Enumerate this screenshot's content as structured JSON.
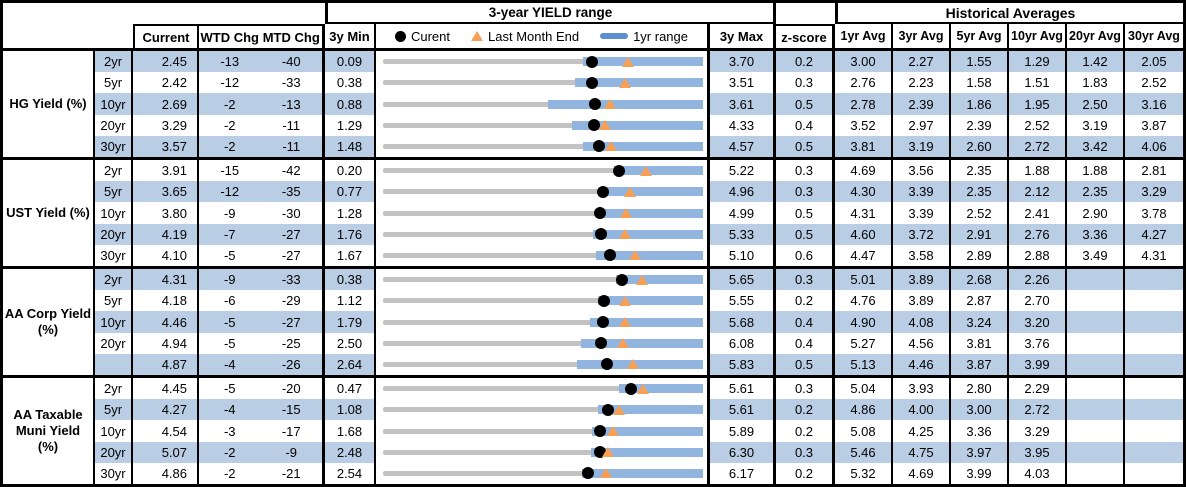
{
  "colors": {
    "stripe": "#b9cde5",
    "bar": "#92b5e0",
    "track": "#c2c2c2",
    "orange": "#f7a055",
    "legendline": "#5b8fd0",
    "border": "#000000"
  },
  "header": {
    "range_title": "3-year YIELD range",
    "historical_title": "Historical Averages",
    "col_current": "Current",
    "col_wtd": "WTD Chg",
    "col_mtd": "MTD Chg",
    "col_3y_min": "3y Min",
    "col_3y_max": "3y Max",
    "col_zscore": "z-score",
    "avg_cols": [
      "1yr Avg",
      "3yr Avg",
      "5yr Avg",
      "10yr Avg",
      "20yr Avg",
      "30yr Avg"
    ],
    "legend": {
      "current": "Curent",
      "last_month": "Last Month End",
      "range": "1yr range"
    }
  },
  "groups": [
    {
      "label": "HG Yield (%)",
      "rows": [
        {
          "tenor": "2yr",
          "current": "2.45",
          "wtd": "-13",
          "mtd": "-40",
          "min": "0.09",
          "max": "3.70",
          "z": "0.2",
          "avgs": [
            "3.00",
            "2.27",
            "1.55",
            "1.29",
            "1.42",
            "2.05"
          ]
        },
        {
          "tenor": "5yr",
          "current": "2.42",
          "wtd": "-12",
          "mtd": "-33",
          "min": "0.38",
          "max": "3.51",
          "z": "0.3",
          "avgs": [
            "2.76",
            "2.23",
            "1.58",
            "1.51",
            "1.83",
            "2.52"
          ]
        },
        {
          "tenor": "10yr",
          "current": "2.69",
          "wtd": "-2",
          "mtd": "-13",
          "min": "0.88",
          "max": "3.61",
          "z": "0.5",
          "avgs": [
            "2.78",
            "2.39",
            "1.86",
            "1.95",
            "2.50",
            "3.16"
          ]
        },
        {
          "tenor": "20yr",
          "current": "3.29",
          "wtd": "-2",
          "mtd": "-11",
          "min": "1.29",
          "max": "4.33",
          "z": "0.4",
          "avgs": [
            "3.52",
            "2.97",
            "2.39",
            "2.52",
            "3.19",
            "3.87"
          ]
        },
        {
          "tenor": "30yr",
          "current": "3.57",
          "wtd": "-2",
          "mtd": "-11",
          "min": "1.48",
          "max": "4.57",
          "z": "0.5",
          "avgs": [
            "3.81",
            "3.19",
            "2.60",
            "2.72",
            "3.42",
            "4.06"
          ]
        }
      ]
    },
    {
      "label": "UST Yield (%)",
      "rows": [
        {
          "tenor": "2yr",
          "current": "3.91",
          "wtd": "-15",
          "mtd": "-42",
          "min": "0.20",
          "max": "5.22",
          "z": "0.3",
          "avgs": [
            "4.69",
            "3.56",
            "2.35",
            "1.88",
            "1.88",
            "2.81"
          ]
        },
        {
          "tenor": "5yr",
          "current": "3.65",
          "wtd": "-12",
          "mtd": "-35",
          "min": "0.77",
          "max": "4.96",
          "z": "0.3",
          "avgs": [
            "4.30",
            "3.39",
            "2.35",
            "2.12",
            "2.35",
            "3.29"
          ]
        },
        {
          "tenor": "10yr",
          "current": "3.80",
          "wtd": "-9",
          "mtd": "-30",
          "min": "1.28",
          "max": "4.99",
          "z": "0.5",
          "avgs": [
            "4.31",
            "3.39",
            "2.52",
            "2.41",
            "2.90",
            "3.78"
          ]
        },
        {
          "tenor": "20yr",
          "current": "4.19",
          "wtd": "-7",
          "mtd": "-27",
          "min": "1.76",
          "max": "5.33",
          "z": "0.5",
          "avgs": [
            "4.60",
            "3.72",
            "2.91",
            "2.76",
            "3.36",
            "4.27"
          ]
        },
        {
          "tenor": "30yr",
          "current": "4.10",
          "wtd": "-5",
          "mtd": "-27",
          "min": "1.67",
          "max": "5.10",
          "z": "0.6",
          "avgs": [
            "4.47",
            "3.58",
            "2.89",
            "2.88",
            "3.49",
            "4.31"
          ]
        }
      ]
    },
    {
      "label": "AA Corp Yield\n(%)",
      "rows": [
        {
          "tenor": "2yr",
          "current": "4.31",
          "wtd": "-9",
          "mtd": "-33",
          "min": "0.38",
          "max": "5.65",
          "z": "0.3",
          "avgs": [
            "5.01",
            "3.89",
            "2.68",
            "2.26",
            "",
            ""
          ]
        },
        {
          "tenor": "5yr",
          "current": "4.18",
          "wtd": "-6",
          "mtd": "-29",
          "min": "1.12",
          "max": "5.55",
          "z": "0.2",
          "avgs": [
            "4.76",
            "3.89",
            "2.87",
            "2.70",
            "",
            ""
          ]
        },
        {
          "tenor": "10yr",
          "current": "4.46",
          "wtd": "-5",
          "mtd": "-27",
          "min": "1.79",
          "max": "5.68",
          "z": "0.4",
          "avgs": [
            "4.90",
            "4.08",
            "3.24",
            "3.20",
            "",
            ""
          ]
        },
        {
          "tenor": "20yr",
          "current": "4.94",
          "wtd": "-5",
          "mtd": "-25",
          "min": "2.50",
          "max": "6.08",
          "z": "0.4",
          "avgs": [
            "5.27",
            "4.56",
            "3.81",
            "3.76",
            "",
            ""
          ]
        },
        {
          "tenor": "",
          "current": "4.87",
          "wtd": "-4",
          "mtd": "-26",
          "min": "2.64",
          "max": "5.83",
          "z": "0.5",
          "avgs": [
            "5.13",
            "4.46",
            "3.87",
            "3.99",
            "",
            ""
          ]
        }
      ]
    },
    {
      "label": "AA Taxable\nMuni Yield\n(%)",
      "rows": [
        {
          "tenor": "2yr",
          "current": "4.45",
          "wtd": "-5",
          "mtd": "-20",
          "min": "0.47",
          "max": "5.61",
          "z": "0.3",
          "avgs": [
            "5.04",
            "3.93",
            "2.80",
            "2.29",
            "",
            ""
          ]
        },
        {
          "tenor": "5yr",
          "current": "4.27",
          "wtd": "-4",
          "mtd": "-15",
          "min": "1.08",
          "max": "5.61",
          "z": "0.2",
          "avgs": [
            "4.86",
            "4.00",
            "3.00",
            "2.72",
            "",
            ""
          ]
        },
        {
          "tenor": "10yr",
          "current": "4.54",
          "wtd": "-3",
          "mtd": "-17",
          "min": "1.68",
          "max": "5.89",
          "z": "0.2",
          "avgs": [
            "5.08",
            "4.25",
            "3.36",
            "3.29",
            "",
            ""
          ]
        },
        {
          "tenor": "20yr",
          "current": "5.07",
          "wtd": "-2",
          "mtd": "-9",
          "min": "2.48",
          "max": "6.30",
          "z": "0.3",
          "avgs": [
            "5.46",
            "4.75",
            "3.97",
            "3.95",
            "",
            ""
          ]
        },
        {
          "tenor": "30yr",
          "current": "4.86",
          "wtd": "-2",
          "mtd": "-21",
          "min": "2.54",
          "max": "6.17",
          "z": "0.2",
          "avgs": [
            "5.32",
            "4.69",
            "3.99",
            "4.03",
            "",
            ""
          ]
        }
      ]
    }
  ],
  "chart_data": {
    "type": "range_bullet",
    "title": "3-year YIELD range",
    "legend": [
      "Curent (black dot)",
      "Last Month End (orange triangle)",
      "1yr range (blue bar)"
    ],
    "axis_note": "each row is scaled from its own 3y Min to 3y Max; gray track = 3y range; blue bar = 1yr range (all 1yr ranges end at the 3y Max); 1yr lows are estimated from pixels; last_month_end = current - MTD chg/100",
    "rows": [
      {
        "group": "HG Yield (%)",
        "tenor": "2yr",
        "min_3y": 0.09,
        "max_3y": 3.7,
        "bar_1yr_low": 2.35,
        "bar_1yr_high": 3.7,
        "current": 2.45,
        "last_month_end": 2.85
      },
      {
        "group": "HG Yield (%)",
        "tenor": "5yr",
        "min_3y": 0.38,
        "max_3y": 3.51,
        "bar_1yr_low": 2.26,
        "bar_1yr_high": 3.51,
        "current": 2.42,
        "last_month_end": 2.75
      },
      {
        "group": "HG Yield (%)",
        "tenor": "10yr",
        "min_3y": 0.88,
        "max_3y": 3.61,
        "bar_1yr_low": 2.29,
        "bar_1yr_high": 3.61,
        "current": 2.69,
        "last_month_end": 2.82
      },
      {
        "group": "HG Yield (%)",
        "tenor": "20yr",
        "min_3y": 1.29,
        "max_3y": 4.33,
        "bar_1yr_low": 3.09,
        "bar_1yr_high": 4.33,
        "current": 3.29,
        "last_month_end": 3.4
      },
      {
        "group": "HG Yield (%)",
        "tenor": "30yr",
        "min_3y": 1.48,
        "max_3y": 4.57,
        "bar_1yr_low": 3.41,
        "bar_1yr_high": 4.57,
        "current": 3.57,
        "last_month_end": 3.68
      },
      {
        "group": "UST Yield (%)",
        "tenor": "2yr",
        "min_3y": 0.2,
        "max_3y": 5.22,
        "bar_1yr_low": 3.83,
        "bar_1yr_high": 5.22,
        "current": 3.91,
        "last_month_end": 4.33
      },
      {
        "group": "UST Yield (%)",
        "tenor": "5yr",
        "min_3y": 0.77,
        "max_3y": 4.96,
        "bar_1yr_low": 3.61,
        "bar_1yr_high": 4.96,
        "current": 3.65,
        "last_month_end": 4.0
      },
      {
        "group": "UST Yield (%)",
        "tenor": "10yr",
        "min_3y": 1.28,
        "max_3y": 4.99,
        "bar_1yr_low": 3.75,
        "bar_1yr_high": 4.99,
        "current": 3.8,
        "last_month_end": 4.1
      },
      {
        "group": "UST Yield (%)",
        "tenor": "20yr",
        "min_3y": 1.76,
        "max_3y": 5.33,
        "bar_1yr_low": 4.1,
        "bar_1yr_high": 5.33,
        "current": 4.19,
        "last_month_end": 4.46
      },
      {
        "group": "UST Yield (%)",
        "tenor": "30yr",
        "min_3y": 1.67,
        "max_3y": 5.1,
        "bar_1yr_low": 3.95,
        "bar_1yr_high": 5.1,
        "current": 4.1,
        "last_month_end": 4.37
      },
      {
        "group": "AA Corp Yield (%)",
        "tenor": "2yr",
        "min_3y": 0.38,
        "max_3y": 5.65,
        "bar_1yr_low": 4.22,
        "bar_1yr_high": 5.65,
        "current": 4.31,
        "last_month_end": 4.64
      },
      {
        "group": "AA Corp Yield (%)",
        "tenor": "5yr",
        "min_3y": 1.12,
        "max_3y": 5.55,
        "bar_1yr_low": 4.1,
        "bar_1yr_high": 5.55,
        "current": 4.18,
        "last_month_end": 4.47
      },
      {
        "group": "AA Corp Yield (%)",
        "tenor": "10yr",
        "min_3y": 1.79,
        "max_3y": 5.68,
        "bar_1yr_low": 4.31,
        "bar_1yr_high": 5.68,
        "current": 4.46,
        "last_month_end": 4.73
      },
      {
        "group": "AA Corp Yield (%)",
        "tenor": "20yr",
        "min_3y": 2.5,
        "max_3y": 6.08,
        "bar_1yr_low": 4.71,
        "bar_1yr_high": 6.08,
        "current": 4.94,
        "last_month_end": 5.19
      },
      {
        "group": "AA Corp Yield (%)",
        "tenor": "",
        "min_3y": 2.64,
        "max_3y": 5.83,
        "bar_1yr_low": 4.57,
        "bar_1yr_high": 5.83,
        "current": 4.87,
        "last_month_end": 5.13
      },
      {
        "group": "AA Taxable Muni Yield (%)",
        "tenor": "2yr",
        "min_3y": 0.47,
        "max_3y": 5.61,
        "bar_1yr_low": 4.26,
        "bar_1yr_high": 5.61,
        "current": 4.45,
        "last_month_end": 4.65
      },
      {
        "group": "AA Taxable Muni Yield (%)",
        "tenor": "5yr",
        "min_3y": 1.08,
        "max_3y": 5.61,
        "bar_1yr_low": 4.12,
        "bar_1yr_high": 5.61,
        "current": 4.27,
        "last_month_end": 4.42
      },
      {
        "group": "AA Taxable Muni Yield (%)",
        "tenor": "10yr",
        "min_3y": 1.68,
        "max_3y": 5.89,
        "bar_1yr_low": 4.43,
        "bar_1yr_high": 5.89,
        "current": 4.54,
        "last_month_end": 4.71
      },
      {
        "group": "AA Taxable Muni Yield (%)",
        "tenor": "20yr",
        "min_3y": 2.48,
        "max_3y": 6.3,
        "bar_1yr_low": 4.96,
        "bar_1yr_high": 6.3,
        "current": 5.07,
        "last_month_end": 5.16
      },
      {
        "group": "AA Taxable Muni Yield (%)",
        "tenor": "30yr",
        "min_3y": 2.54,
        "max_3y": 6.17,
        "bar_1yr_low": 4.8,
        "bar_1yr_high": 6.17,
        "current": 4.86,
        "last_month_end": 5.07
      }
    ]
  }
}
